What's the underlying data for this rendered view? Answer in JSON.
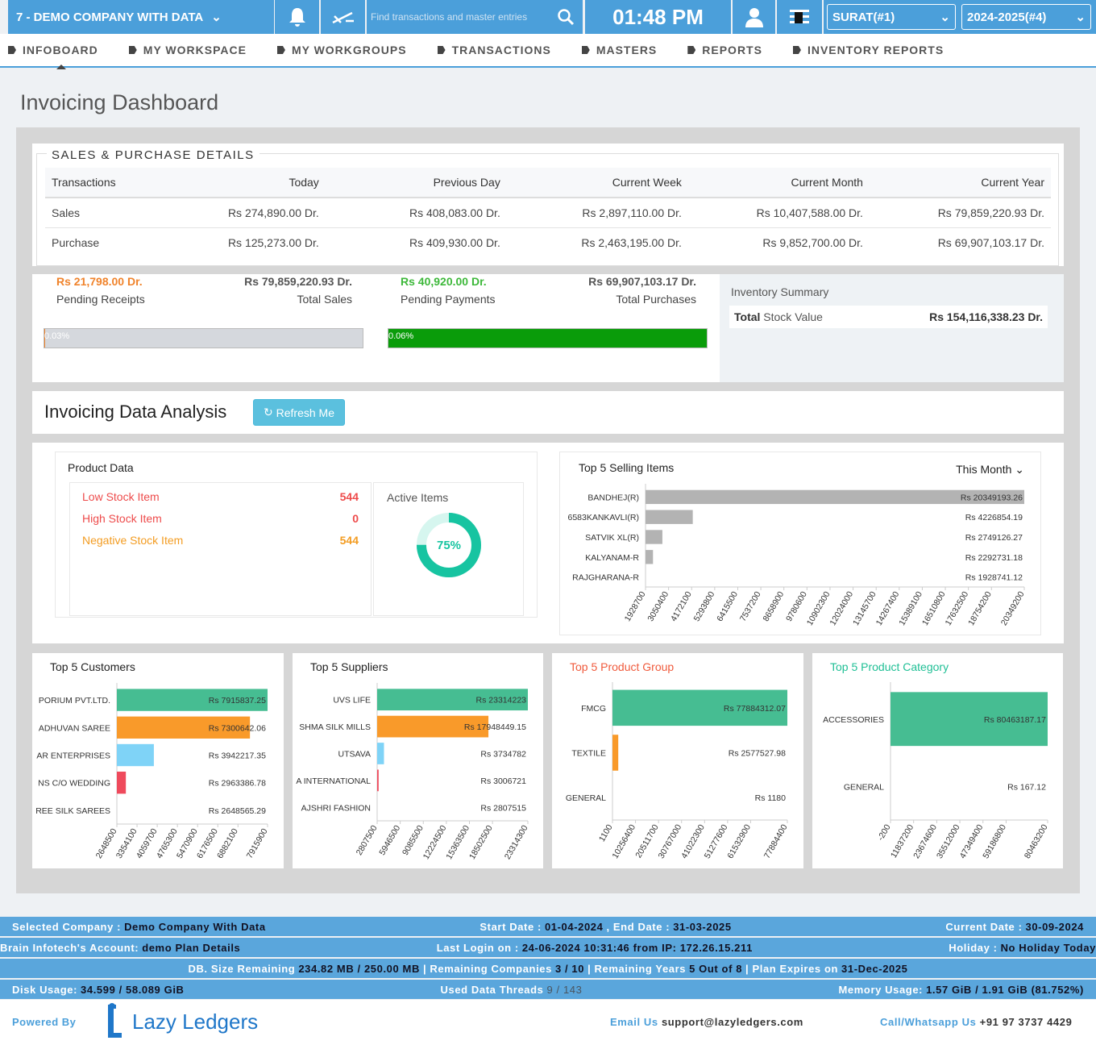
{
  "top_bar": {
    "company": "7 - DEMO COMPANY WITH DATA",
    "search_placeholder": "Find transactions and master entries",
    "time": "01:48 PM",
    "branch": "SURAT(#1)",
    "year": "2024-2025(#4)"
  },
  "nav": [
    "INFOBOARD",
    "MY WORKSPACE",
    "MY WORKGROUPS",
    "TRANSACTIONS",
    "MASTERS",
    "REPORTS",
    "INVENTORY REPORTS"
  ],
  "page_title": "Invoicing Dashboard",
  "sales_purchase": {
    "legend": "SALES & PURCHASE DETAILS",
    "columns": [
      "Transactions",
      "Today",
      "Previous Day",
      "Current Week",
      "Current Month",
      "Current Year"
    ],
    "rows": [
      [
        "Sales",
        "Rs 274,890.00 Dr.",
        "Rs 408,083.00 Dr.",
        "Rs 2,897,110.00 Dr.",
        "Rs 10,407,588.00 Dr.",
        "Rs 79,859,220.93 Dr."
      ],
      [
        "Purchase",
        "Rs 125,273.00 Dr.",
        "Rs 409,930.00 Dr.",
        "Rs 2,463,195.00 Dr.",
        "Rs 9,852,700.00 Dr.",
        "Rs 69,907,103.17 Dr."
      ]
    ]
  },
  "summary": [
    {
      "amount": "Rs 21,798.00 Dr.",
      "label": "Pending Receipts",
      "total_amount": "Rs 79,859,220.93 Dr.",
      "total_label": "Total Sales",
      "progress": {
        "value": 0.03,
        "label": "0.03%"
      },
      "color": "#f0832b",
      "bar_color": "#f0832b"
    },
    {
      "amount": "Rs 40,920.00 Dr.",
      "label": "Pending Payments",
      "total_amount": "Rs 69,907,103.17 Dr.",
      "total_label": "Total Purchases",
      "progress": {
        "value": 0.06,
        "label": "0.06%"
      },
      "color": "#3db83a",
      "bar_color": "#0a9c0a"
    }
  ],
  "inventory": {
    "title": "Inventory Summary",
    "total_label": "Total",
    "label": "Stock Value",
    "value": "Rs 154,116,338.23 Dr."
  },
  "analysis": {
    "title": "Invoicing Data Analysis",
    "refresh": "Refresh Me"
  },
  "product_data": {
    "title": "Product Data",
    "items": [
      {
        "label": "Low Stock Item",
        "value": 544,
        "color": "#ee4b4b"
      },
      {
        "label": "High Stock Item",
        "value": 0,
        "color": "#ee4b4b"
      },
      {
        "label": "Negative Stock Item",
        "value": 544,
        "color": "#f39c22"
      }
    ],
    "active_items": {
      "title": "Active Items",
      "value": 75,
      "label": "75%",
      "color": "#17c4a1"
    }
  },
  "charts": [
    {
      "type": "bar",
      "title": "Top 5 Selling Items",
      "period": "This Month",
      "title_color": "#222",
      "categories": [
        "BANDHEJ(R)",
        "6583KANKAVLI(R)",
        "SATVIK XL(R)",
        "KALYANAM-R",
        "RAJGHARANA-R"
      ],
      "values": [
        20349193.26,
        4226854.19,
        2749126.27,
        2292731.18,
        1928741.12
      ],
      "value_labels": [
        "Rs 20349193.26",
        "Rs 4226854.19",
        "Rs 2749126.27",
        "Rs 2292731.18",
        "Rs 1928741.12"
      ],
      "colors": [
        "#b3b3b3",
        "#b3b3b3",
        "#b3b3b3",
        "#b3b3b3",
        "#b3b3b3"
      ],
      "xlim": [
        1928700,
        20349200
      ],
      "xticks": [
        1928700,
        3050400,
        4172100,
        5293800,
        6415500,
        7537200,
        8658900,
        9780600,
        10902300,
        12024000,
        13145700,
        14267400,
        15389100,
        16510800,
        17632500,
        18754200,
        20349200
      ]
    },
    {
      "type": "bar",
      "title": "Top 5 Customers",
      "title_color": "#222",
      "categories": [
        "PORIUM PVT.LTD.",
        "ADHUVAN SAREE",
        "AR ENTERPRISES",
        "NS C/O WEDDING",
        "REE SILK SAREES"
      ],
      "values": [
        7915837.25,
        7300642.06,
        3942217.35,
        2963386.78,
        2648565.29
      ],
      "value_labels": [
        "Rs 7915837.25",
        "Rs 7300642.06",
        "Rs 3942217.35",
        "Rs 2963386.78",
        "Rs 2648565.29"
      ],
      "colors": [
        "#46bd92",
        "#f99a2a",
        "#7fd3f7",
        "#ef4a5c",
        "#b3b3b3"
      ],
      "xlim": [
        2648500,
        7915900
      ],
      "xticks": [
        2648500,
        3354100,
        4059700,
        4765300,
        5470900,
        6176500,
        6882100,
        7915900
      ]
    },
    {
      "type": "bar",
      "title": "Top 5 Suppliers",
      "title_color": "#222",
      "categories": [
        "UVS LIFE",
        "SHMA SILK MILLS",
        "UTSAVA",
        "A INTERNATIONAL",
        "AJSHRI FASHION"
      ],
      "values": [
        23314223,
        17948449.15,
        3734782,
        3006721,
        2807515
      ],
      "value_labels": [
        "Rs 23314223",
        "Rs 17948449.15",
        "Rs 3734782",
        "Rs 3006721",
        "Rs 2807515"
      ],
      "colors": [
        "#46bd92",
        "#f99a2a",
        "#7fd3f7",
        "#ef4a5c",
        "#b3b3b3"
      ],
      "xlim": [
        2807500,
        23314300
      ],
      "xticks": [
        2807500,
        5946500,
        9085500,
        12224500,
        15363500,
        18502500,
        23314300
      ]
    },
    {
      "type": "bar",
      "title": "Top 5 Product Group",
      "title_color": "#f05a3c",
      "categories": [
        "FMCG",
        "TEXTILE",
        "GENERAL"
      ],
      "values": [
        77884312.07,
        2577527.98,
        1180
      ],
      "value_labels": [
        "Rs 77884312.07",
        "Rs 2577527.98",
        "Rs 1180"
      ],
      "colors": [
        "#46bd92",
        "#f99a2a",
        "#7fd3f7"
      ],
      "xlim": [
        1100,
        77884400
      ],
      "xticks": [
        1100,
        10256400,
        20511700,
        30767000,
        41022300,
        51277600,
        61532900,
        77884400
      ]
    },
    {
      "type": "bar",
      "title": "Top 5 Product Category",
      "title_color": "#1fbf95",
      "categories": [
        "ACCESSORIES",
        "GENERAL"
      ],
      "values": [
        80463187.17,
        167.12
      ],
      "value_labels": [
        "Rs 80463187.17",
        "Rs 167.12"
      ],
      "colors": [
        "#46bd92",
        "#f99a2a"
      ],
      "xlim": [
        -200,
        80463200
      ],
      "xticks": [
        -200,
        11837200,
        23674600,
        35512000,
        47349400,
        59186800,
        80463200
      ]
    }
  ],
  "footer": {
    "rows": [
      [
        [
          {
            "label": "Selected Company :",
            "value": "Demo Company With Data"
          }
        ],
        [
          {
            "label": "Start Date :",
            "value": "01-04-2024"
          },
          {
            "label": ", End Date :",
            "value": "31-03-2025"
          }
        ],
        [
          {
            "label": "Current Date :",
            "value": "30-09-2024"
          }
        ]
      ],
      [
        [
          {
            "label": "Brain Infotech's Account:",
            "value": "demo Plan Details"
          }
        ],
        [
          {
            "label": "Last Login on :",
            "value": "24-06-2024 10:31:46 from IP: 172.26.15.211"
          }
        ],
        [
          {
            "label": "Holiday :",
            "value": "No Holiday Today"
          }
        ]
      ],
      [
        [
          {
            "label": "DB. Size Remaining",
            "value": "234.82 MB / 250.00 MB"
          },
          {
            "label": "| Remaining Companies",
            "value": "3 / 10"
          },
          {
            "label": "| Remaining Years",
            "value": "5 Out of 8"
          },
          {
            "label": "| Plan Expires on",
            "value": "31-Dec-2025"
          }
        ]
      ],
      [
        [
          {
            "label": "Disk Usage:",
            "value": "34.599 / 58.089 GiB"
          }
        ],
        [
          {
            "label": "Used Data Threads",
            "value": "9 / 143"
          }
        ],
        [
          {
            "label": "Memory Usage:",
            "value": "1.57 GiB / 1.91 GiB (81.752%)"
          }
        ]
      ]
    ],
    "powered_by": "Powered By",
    "logo": "Lazy Ledgers",
    "email_label": "Email Us",
    "email": "support@lazyledgers.com",
    "call_label": "Call/Whatsapp Us",
    "phone": "+91 97 3737 4429"
  }
}
